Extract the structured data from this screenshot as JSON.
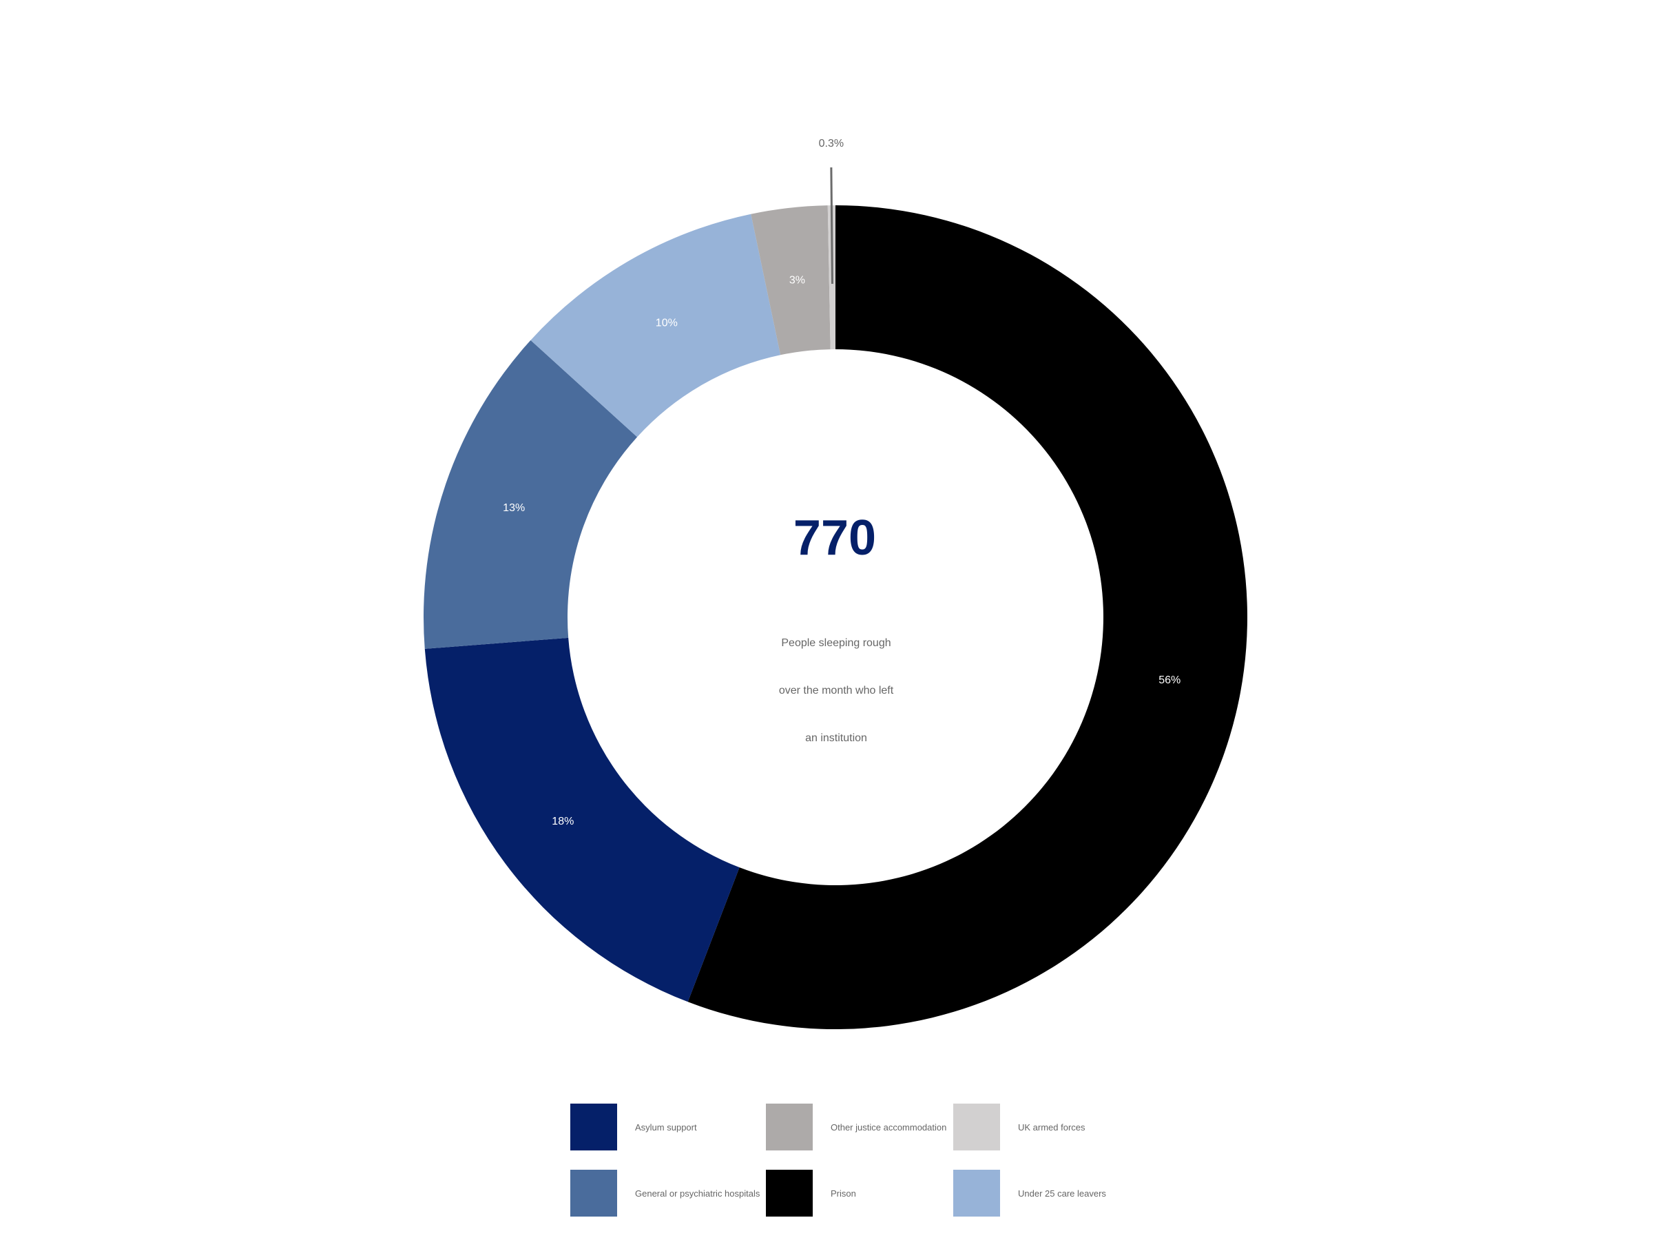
{
  "chart_data": {
    "type": "pie",
    "variant": "donut",
    "title": "",
    "center_value": "770",
    "center_caption": [
      "People sleeping rough",
      "over the month who left",
      "an institution"
    ],
    "slices": [
      {
        "name": "Prison",
        "value": 56,
        "label": "56%",
        "color": "#000000"
      },
      {
        "name": "Asylum support",
        "value": 18,
        "label": "18%",
        "color": "#052069"
      },
      {
        "name": "General or psychiatric hospitals",
        "value": 13,
        "label": "13%",
        "color": "#4a6c9c"
      },
      {
        "name": "Under 25 care leavers",
        "value": 10,
        "label": "10%",
        "color": "#97b3d8"
      },
      {
        "name": "Other justice accommodation",
        "value": 3,
        "label": "3%",
        "color": "#adaaa9"
      },
      {
        "name": "UK armed forces",
        "value": 0.3,
        "label": "0.3%",
        "color": "#d2d0d0"
      }
    ],
    "legend": {
      "placement": "bottom",
      "entries": [
        {
          "name": "Asylum support",
          "color": "#052069"
        },
        {
          "name": "Other justice accommodation",
          "color": "#adaaa9"
        },
        {
          "name": "UK armed forces",
          "color": "#d2d0d0"
        },
        {
          "name": "General or psychiatric hospitals",
          "color": "#4a6c9c"
        },
        {
          "name": "Prison",
          "color": "#000000"
        },
        {
          "name": "Under 25 care leavers",
          "color": "#97b3d8"
        }
      ]
    }
  }
}
